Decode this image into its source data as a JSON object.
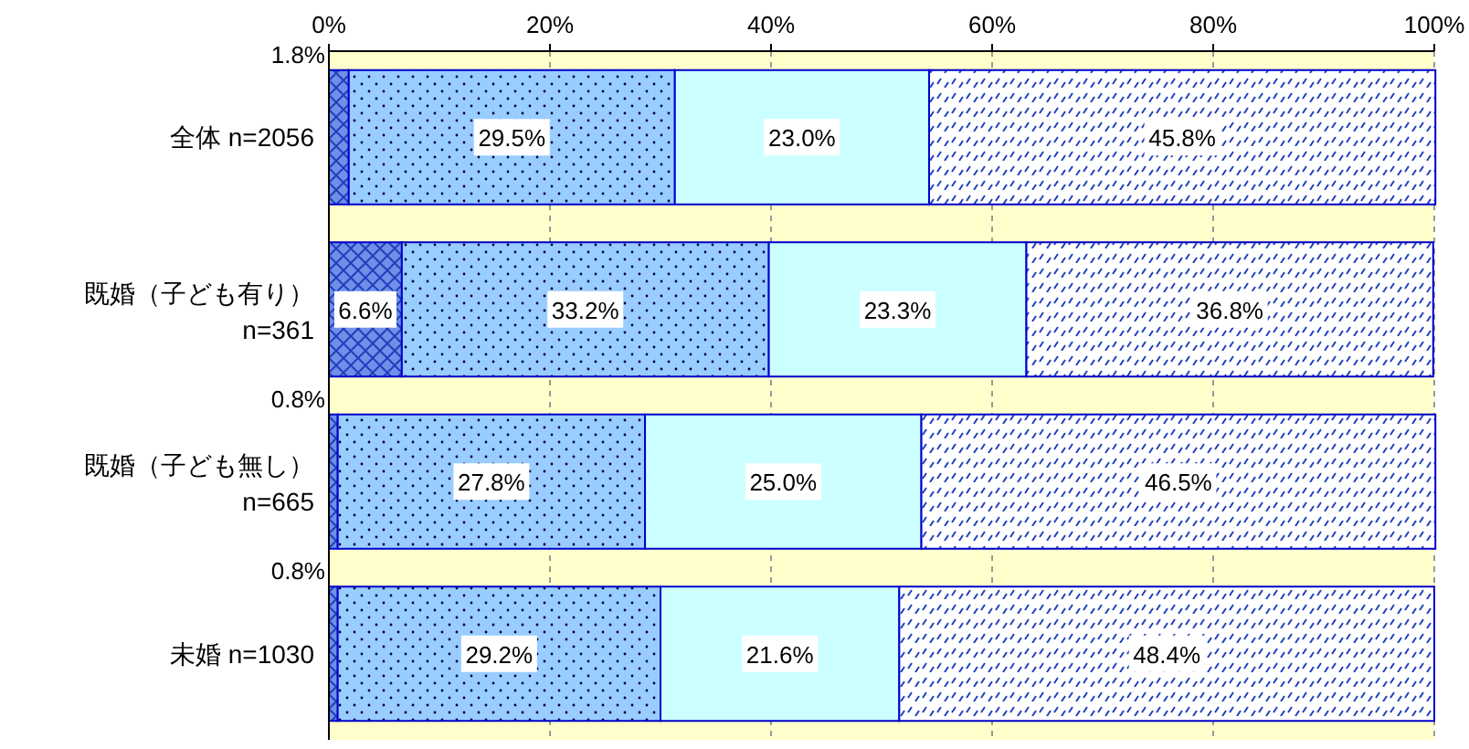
{
  "chart_data": {
    "type": "bar",
    "orientation": "horizontal",
    "stacked": true,
    "categories": [
      "全体 n=2056",
      "既婚（子ども有り）\nn=361",
      "既婚（子ども無し）\nn=665",
      "未婚 n=1030"
    ],
    "series": [
      {
        "color": "#6f8fe8",
        "values": [
          1.8,
          6.6,
          0.8,
          0.8
        ],
        "value_labels": [
          "1.8%",
          "6.6%",
          "0.8%",
          "0.8%"
        ]
      },
      {
        "color": "#99ccff",
        "values": [
          29.5,
          33.2,
          27.8,
          29.2
        ],
        "value_labels": [
          "29.5%",
          "33.2%",
          "27.8%",
          "29.2%"
        ]
      },
      {
        "color": "#ccffff",
        "values": [
          23.0,
          23.3,
          25.0,
          21.6
        ],
        "value_labels": [
          "23.0%",
          "23.3%",
          "25.0%",
          "21.6%"
        ]
      },
      {
        "color": "#ffffff",
        "values": [
          45.8,
          36.8,
          46.5,
          48.4
        ],
        "value_labels": [
          "45.8%",
          "36.8%",
          "46.5%",
          "48.4%"
        ]
      }
    ],
    "xlim": [
      0,
      100
    ],
    "xticks": [
      {
        "value": 0,
        "label": "0%"
      },
      {
        "value": 20,
        "label": "20%"
      },
      {
        "value": 40,
        "label": "40%"
      },
      {
        "value": 60,
        "label": "60%"
      },
      {
        "value": 80,
        "label": "80%"
      },
      {
        "value": 100,
        "label": "100%"
      }
    ],
    "bands": [
      {
        "axis": "x",
        "from": 0,
        "to": 100,
        "color": "#ffffcc"
      }
    ],
    "grid": "x"
  }
}
